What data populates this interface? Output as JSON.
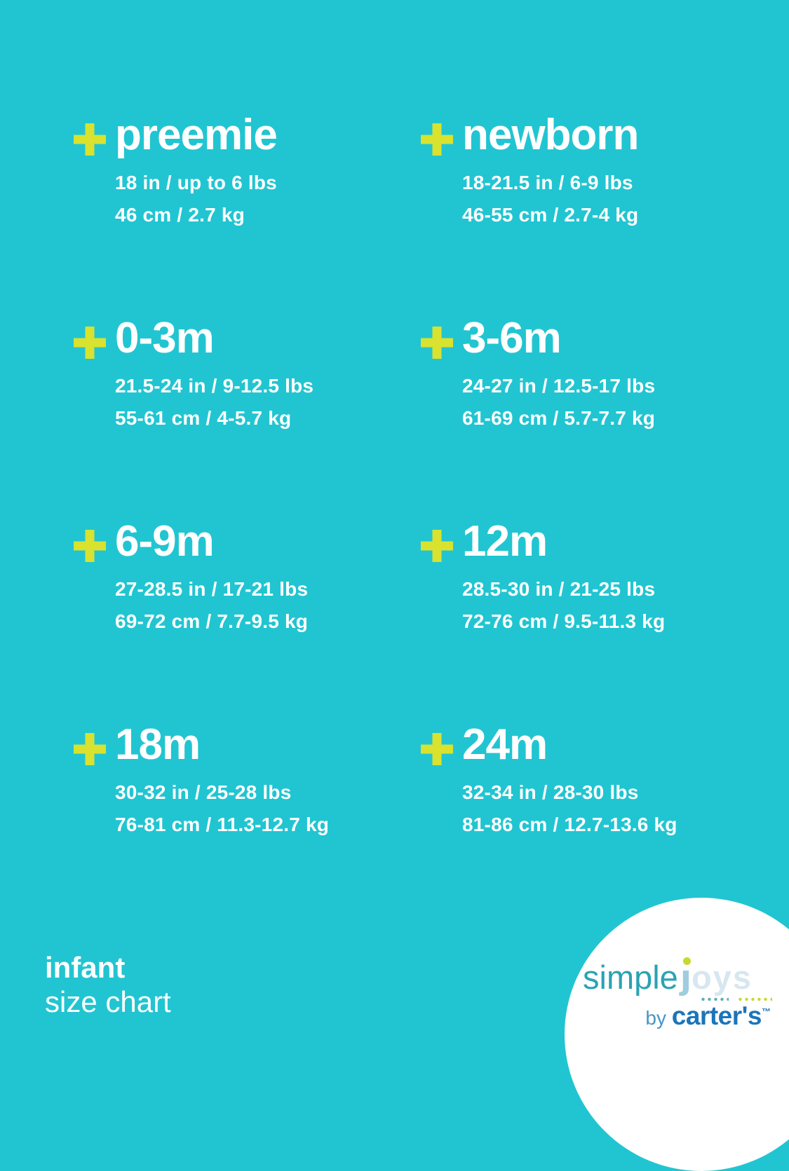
{
  "theme": {
    "background": "#21c5d1",
    "text": "#ffffff",
    "plus": "#d8e22f",
    "logo_simple": "#2aa3b3",
    "logo_j": "#9fcdde",
    "logo_joys": "#d7e7f0",
    "logo_dot": "#c6d931",
    "logo_dots_teal": "#5fadb6",
    "logo_dots_yellow": "#c6d931",
    "logo_by": "#4596c4",
    "logo_carters": "#1c75b9",
    "logo_circle": "#ffffff"
  },
  "sizes": [
    {
      "label": "preemie",
      "imperial": "18 in / up to 6 lbs",
      "metric": "46 cm / 2.7 kg"
    },
    {
      "label": "newborn",
      "imperial": "18-21.5 in / 6-9 lbs",
      "metric": "46-55 cm / 2.7-4 kg"
    },
    {
      "label": "0-3m",
      "imperial": "21.5-24 in / 9-12.5 lbs",
      "metric": "55-61 cm / 4-5.7 kg"
    },
    {
      "label": "3-6m",
      "imperial": "24-27 in / 12.5-17 lbs",
      "metric": "61-69 cm / 5.7-7.7 kg"
    },
    {
      "label": "6-9m",
      "imperial": "27-28.5 in / 17-21 lbs",
      "metric": "69-72 cm / 7.7-9.5 kg"
    },
    {
      "label": "12m",
      "imperial": "28.5-30 in / 21-25 lbs",
      "metric": "72-76 cm / 9.5-11.3 kg"
    },
    {
      "label": "18m",
      "imperial": "30-32 in / 25-28 lbs",
      "metric": "76-81 cm / 11.3-12.7 kg"
    },
    {
      "label": "24m",
      "imperial": "32-34 in / 28-30 lbs",
      "metric": "81-86 cm / 12.7-13.6 kg"
    }
  ],
  "footer": {
    "title": "infant",
    "subtitle": "size chart"
  },
  "logo": {
    "simple": "simple",
    "joys_j": "ȷ",
    "joys_rest": "oys",
    "by": "by ",
    "brand": "carter's",
    "trademark": "™"
  },
  "chart_data": {
    "type": "table",
    "title": "infant size chart",
    "columns": [
      "size",
      "length_imperial",
      "weight_imperial",
      "length_metric",
      "weight_metric"
    ],
    "rows": [
      [
        "preemie",
        "18 in",
        "up to 6 lbs",
        "46 cm",
        "2.7 kg"
      ],
      [
        "newborn",
        "18-21.5 in",
        "6-9 lbs",
        "46-55 cm",
        "2.7-4 kg"
      ],
      [
        "0-3m",
        "21.5-24 in",
        "9-12.5 lbs",
        "55-61 cm",
        "4-5.7 kg"
      ],
      [
        "3-6m",
        "24-27 in",
        "12.5-17 lbs",
        "61-69 cm",
        "5.7-7.7 kg"
      ],
      [
        "6-9m",
        "27-28.5 in",
        "17-21 lbs",
        "69-72 cm",
        "7.7-9.5 kg"
      ],
      [
        "12m",
        "28.5-30 in",
        "21-25 lbs",
        "72-76 cm",
        "9.5-11.3 kg"
      ],
      [
        "18m",
        "30-32 in",
        "25-28 lbs",
        "76-81 cm",
        "11.3-12.7 kg"
      ],
      [
        "24m",
        "32-34 in",
        "28-30 lbs",
        "81-86 cm",
        "12.7-13.6 kg"
      ]
    ]
  }
}
